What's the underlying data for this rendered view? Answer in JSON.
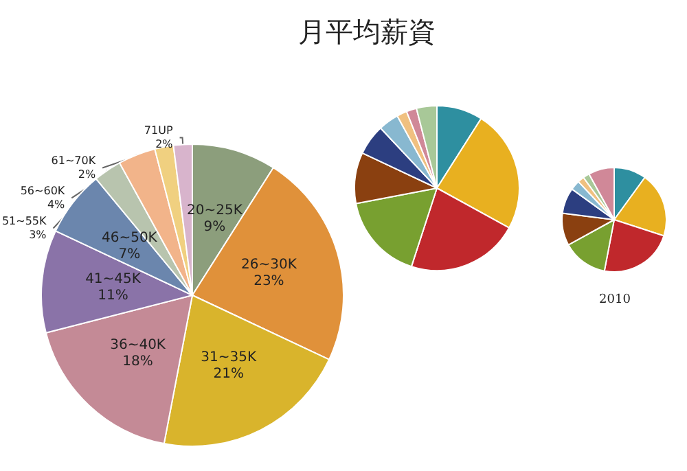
{
  "chart_data": [
    {
      "type": "pie",
      "title": "月平均薪資",
      "categories": [
        "20~25K",
        "26~30K",
        "31~35K",
        "36~40K",
        "41~45K",
        "46~50K",
        "51~55K",
        "56~60K",
        "61~70K",
        "71UP"
      ],
      "values": [
        9,
        23,
        21,
        18,
        11,
        7,
        3,
        4,
        2,
        2
      ],
      "value_labels": [
        "9%",
        "23%",
        "21%",
        "18%",
        "11%",
        "7%",
        "3%",
        "4%",
        "2%",
        "2%"
      ],
      "colors": [
        "#8c9e7c",
        "#e0913a",
        "#d9b42c",
        "#c48a96",
        "#8a73a8",
        "#6b86ad",
        "#b8c4ae",
        "#f2b48a",
        "#f0d080",
        "#d8b4cc"
      ]
    },
    {
      "type": "pie",
      "categories": [
        null,
        null,
        null,
        null,
        null,
        null,
        null,
        null,
        null,
        null
      ],
      "values": [
        9,
        24,
        22,
        17,
        10,
        6,
        4,
        2,
        2,
        4
      ],
      "colors": [
        "#2e8fa0",
        "#e8b020",
        "#c0282c",
        "#78a030",
        "#8a4010",
        "#2c3e80",
        "#88b8d0",
        "#f0c080",
        "#d08898",
        "#a8c898"
      ]
    },
    {
      "type": "pie",
      "annotations": [
        "2010"
      ],
      "categories": [
        null,
        null,
        null,
        null,
        null,
        null,
        null,
        null,
        null,
        null
      ],
      "values": [
        10,
        20,
        23,
        14,
        10,
        8,
        3,
        2,
        2,
        8
      ],
      "colors": [
        "#2e8fa0",
        "#e8b020",
        "#c0282c",
        "#78a030",
        "#8a4010",
        "#2c3e80",
        "#88b8d0",
        "#f0c080",
        "#a8c898",
        "#d08898"
      ]
    }
  ]
}
